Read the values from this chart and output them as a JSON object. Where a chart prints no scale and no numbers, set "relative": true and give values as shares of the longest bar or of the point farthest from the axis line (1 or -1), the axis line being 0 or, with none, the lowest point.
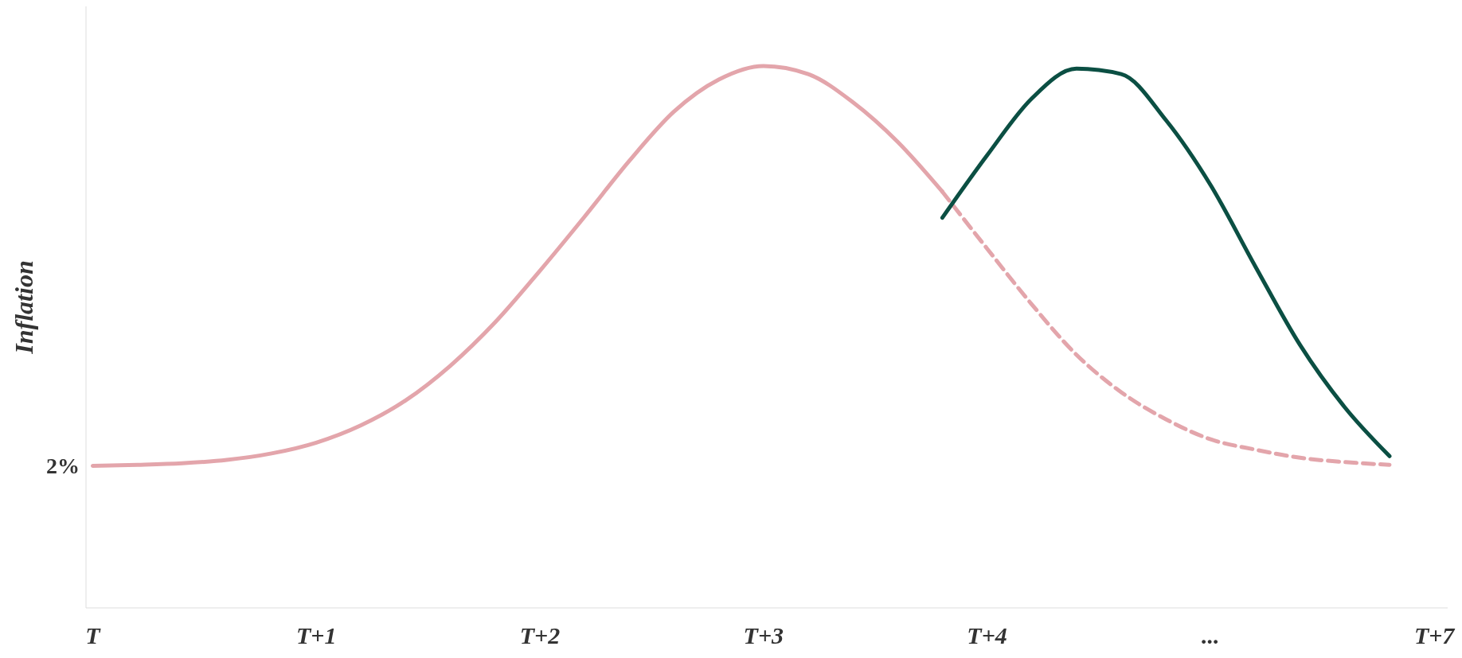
{
  "chart_data": {
    "type": "line",
    "ylabel": "Inflation",
    "relative": true,
    "categories": [
      "T",
      null,
      null,
      null,
      null,
      "T+1",
      null,
      null,
      null,
      null,
      "T+2",
      null,
      null,
      null,
      null,
      "T+3",
      null,
      null,
      null,
      null,
      "T+4",
      null,
      null,
      null,
      null,
      "...",
      null,
      null,
      null,
      null,
      "T+7"
    ],
    "annotations": [
      "2%"
    ],
    "grid": false,
    "legend": false,
    "marker": "none",
    "series": [
      {
        "color": "#e3a5ab",
        "line_style": "solid",
        "values": [
          0.262,
          0.264,
          0.267,
          0.273,
          0.285,
          0.305,
          0.337,
          0.383,
          0.447,
          0.527,
          0.622,
          0.722,
          0.825,
          0.916,
          0.975,
          1,
          0.985,
          0.933,
          0.86,
          0.768,
          null,
          null,
          null,
          null,
          null,
          null,
          null,
          null,
          null,
          null,
          null
        ]
      },
      {
        "color": "#e3a5ab",
        "line_style": "dashed",
        "values": [
          null,
          null,
          null,
          null,
          null,
          null,
          null,
          null,
          null,
          null,
          null,
          null,
          null,
          null,
          null,
          null,
          null,
          null,
          null,
          0.768,
          0.663,
          0.56,
          0.467,
          0.398,
          0.348,
          0.311,
          0.292,
          0.277,
          0.269,
          0.264,
          null
        ]
      },
      {
        "color": "#0b4f43",
        "line_style": "solid",
        "values": [
          null,
          null,
          null,
          null,
          null,
          null,
          null,
          null,
          null,
          null,
          null,
          null,
          null,
          null,
          null,
          null,
          null,
          null,
          null,
          0.72,
          0.835,
          0.94,
          0.995,
          0.985,
          0.9,
          0.78,
          0.63,
          0.485,
          0.37,
          0.28,
          null
        ]
      }
    ]
  }
}
